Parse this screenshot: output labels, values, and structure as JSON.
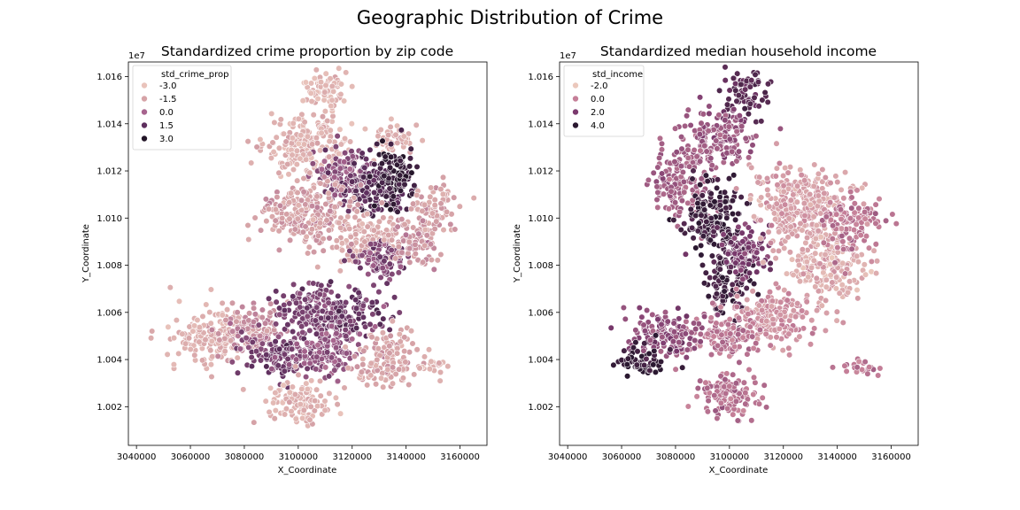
{
  "figure": {
    "title": "Geographic Distribution of Crime"
  },
  "chart_data": [
    {
      "type": "scatter",
      "title": "Standardized crime proportion by zip code",
      "xlabel": "X_Coordinate",
      "ylabel": "Y_Coordinate",
      "y_offset_label": "1e7",
      "xlim": [
        3037000,
        3170000
      ],
      "ylim": [
        10003600,
        10166200
      ],
      "x_ticks": [
        3040000,
        3060000,
        3080000,
        3100000,
        3120000,
        3140000,
        3160000
      ],
      "y_ticks": [
        1.002,
        1.004,
        1.006,
        1.008,
        1.01,
        1.012,
        1.014,
        1.016
      ],
      "legend": {
        "title": "std_crime_prop",
        "position": "upper-left",
        "entries": [
          {
            "label": "-3.0",
            "color": "#e9c3bb"
          },
          {
            "label": "-1.5",
            "color": "#d6a3a7"
          },
          {
            "label": "0.0",
            "color": "#a7648e"
          },
          {
            "label": "1.5",
            "color": "#5e2f5e"
          },
          {
            "label": "3.0",
            "color": "#231528"
          }
        ]
      },
      "grid": false,
      "regions": [
        {
          "cx": 3103000,
          "cy": 10131000,
          "sx": 8000,
          "sy": 7000,
          "value": -2.2
        },
        {
          "cx": 3135000,
          "cy": 10133000,
          "sx": 4000,
          "sy": 3000,
          "value": -2.0
        },
        {
          "cx": 3110000,
          "cy": 10155000,
          "sx": 4000,
          "sy": 5000,
          "value": -2.4
        },
        {
          "cx": 3118000,
          "cy": 10118000,
          "sx": 6000,
          "sy": 6000,
          "value": 0.6
        },
        {
          "cx": 3129000,
          "cy": 10113000,
          "sx": 6000,
          "sy": 6000,
          "value": 1.6
        },
        {
          "cx": 3136000,
          "cy": 10117000,
          "sx": 4000,
          "sy": 6000,
          "value": 2.6
        },
        {
          "cx": 3104000,
          "cy": 10102000,
          "sx": 9000,
          "sy": 7000,
          "value": -1.4
        },
        {
          "cx": 3125000,
          "cy": 10091000,
          "sx": 6000,
          "sy": 5000,
          "value": -1.8
        },
        {
          "cx": 3131000,
          "cy": 10082000,
          "sx": 5000,
          "sy": 5000,
          "value": 0.8
        },
        {
          "cx": 3144000,
          "cy": 10090000,
          "sx": 5000,
          "sy": 5000,
          "value": -1.2
        },
        {
          "cx": 3150000,
          "cy": 10105000,
          "sx": 4000,
          "sy": 5000,
          "value": -1.6
        },
        {
          "cx": 3070000,
          "cy": 10050000,
          "sx": 8000,
          "sy": 6000,
          "value": -2.1
        },
        {
          "cx": 3084000,
          "cy": 10052000,
          "sx": 6000,
          "sy": 5000,
          "value": -1.0
        },
        {
          "cx": 3105000,
          "cy": 10060000,
          "sx": 7000,
          "sy": 6000,
          "value": 0.9
        },
        {
          "cx": 3120000,
          "cy": 10058000,
          "sx": 6000,
          "sy": 5000,
          "value": 1.2
        },
        {
          "cx": 3095000,
          "cy": 10042000,
          "sx": 7000,
          "sy": 5000,
          "value": 1.0
        },
        {
          "cx": 3111000,
          "cy": 10043000,
          "sx": 6000,
          "sy": 5000,
          "value": 0.4
        },
        {
          "cx": 3100000,
          "cy": 10022000,
          "sx": 6000,
          "sy": 5000,
          "value": -2.2
        },
        {
          "cx": 3133000,
          "cy": 10040000,
          "sx": 6000,
          "sy": 6000,
          "value": -1.7
        },
        {
          "cx": 3150000,
          "cy": 10037000,
          "sx": 3000,
          "sy": 2000,
          "value": -2.3
        }
      ]
    },
    {
      "type": "scatter",
      "title": "Standardized median household income",
      "xlabel": "X_Coordinate",
      "ylabel": "Y_Coordinate",
      "y_offset_label": "1e7",
      "xlim": [
        3037000,
        3170000
      ],
      "ylim": [
        10003600,
        10166200
      ],
      "x_ticks": [
        3040000,
        3060000,
        3080000,
        3100000,
        3120000,
        3140000,
        3160000
      ],
      "y_ticks": [
        1.002,
        1.004,
        1.006,
        1.008,
        1.01,
        1.012,
        1.014,
        1.016
      ],
      "legend": {
        "title": "std_income",
        "position": "upper-left",
        "entries": [
          {
            "label": "-2.0",
            "color": "#ebc8bc"
          },
          {
            "label": "0.0",
            "color": "#c57f98"
          },
          {
            "label": "2.0",
            "color": "#7b3a6e"
          },
          {
            "label": "4.0",
            "color": "#2a1830"
          }
        ]
      },
      "grid": false,
      "regions": [
        {
          "cx": 3106000,
          "cy": 10153000,
          "sx": 4000,
          "sy": 5000,
          "value": 2.8
        },
        {
          "cx": 3096000,
          "cy": 10133000,
          "sx": 7000,
          "sy": 6000,
          "value": 1.2
        },
        {
          "cx": 3082000,
          "cy": 10114000,
          "sx": 5000,
          "sy": 8000,
          "value": 0.9
        },
        {
          "cx": 3094000,
          "cy": 10100000,
          "sx": 5000,
          "sy": 8000,
          "value": 3.6
        },
        {
          "cx": 3100000,
          "cy": 10076000,
          "sx": 4000,
          "sy": 8000,
          "value": 3.4
        },
        {
          "cx": 3106000,
          "cy": 10085000,
          "sx": 4000,
          "sy": 6000,
          "value": 2.0
        },
        {
          "cx": 3126000,
          "cy": 10105000,
          "sx": 9000,
          "sy": 9000,
          "value": -0.9
        },
        {
          "cx": 3136000,
          "cy": 10080000,
          "sx": 8000,
          "sy": 6000,
          "value": -1.2
        },
        {
          "cx": 3118000,
          "cy": 10058000,
          "sx": 8000,
          "sy": 6000,
          "value": -0.5
        },
        {
          "cx": 3098000,
          "cy": 10050000,
          "sx": 7000,
          "sy": 5000,
          "value": 0.3
        },
        {
          "cx": 3075000,
          "cy": 10050000,
          "sx": 7000,
          "sy": 5000,
          "value": 1.5
        },
        {
          "cx": 3067000,
          "cy": 10040000,
          "sx": 5000,
          "sy": 3000,
          "value": 3.8
        },
        {
          "cx": 3100000,
          "cy": 10025000,
          "sx": 6000,
          "sy": 5000,
          "value": 0.4
        },
        {
          "cx": 3145000,
          "cy": 10098000,
          "sx": 5000,
          "sy": 6000,
          "value": 0.2
        },
        {
          "cx": 3150000,
          "cy": 10037000,
          "sx": 3000,
          "sy": 2000,
          "value": 0.1
        }
      ]
    }
  ]
}
